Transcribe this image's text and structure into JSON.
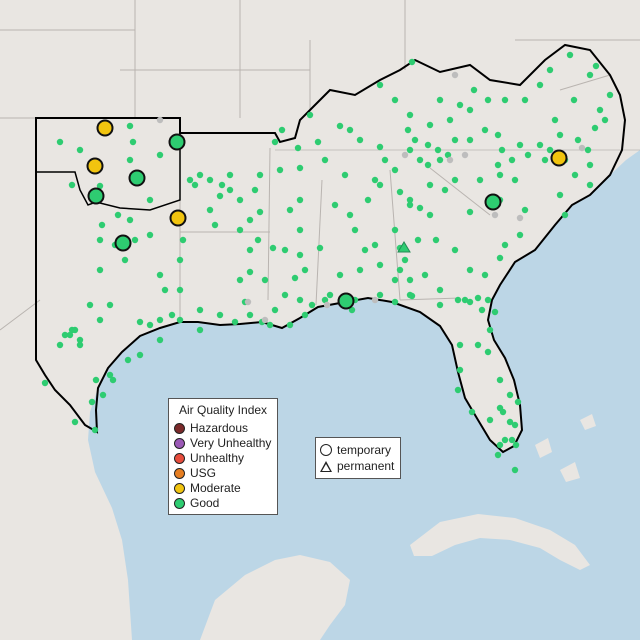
{
  "colors": {
    "water": "#bcd6e6",
    "land": "#e9e6e2",
    "border": "#b9b4b0",
    "region": "#000000",
    "good": "#2ecc71",
    "moderate": "#f1c40f",
    "usg": "#e67e22",
    "unhealthy": "#e74c3c",
    "very_unhealthy": "#9b59b6",
    "hazardous": "#7b2a2a",
    "nodata": "#bdbdbd"
  },
  "legend": {
    "title": "Air Quality Index",
    "items": [
      {
        "label": "Hazardous",
        "color": "#7b2a2a",
        "name": "legend-hazardous"
      },
      {
        "label": "Very Unhealthy",
        "color": "#9b59b6",
        "name": "legend-very-unhealthy"
      },
      {
        "label": "Unhealthy",
        "color": "#e74c3c",
        "name": "legend-unhealthy"
      },
      {
        "label": "USG",
        "color": "#e67e22",
        "name": "legend-usg"
      },
      {
        "label": "Moderate",
        "color": "#f1c40f",
        "name": "legend-moderate"
      },
      {
        "label": "Good",
        "color": "#2ecc71",
        "name": "legend-good"
      }
    ]
  },
  "type_legend": {
    "temporary": "temporary",
    "permanent": "permanent"
  },
  "monitors": {
    "temporary_large": [
      {
        "category": "moderate"
      },
      {
        "category": "good"
      },
      {
        "category": "moderate"
      },
      {
        "category": "good"
      },
      {
        "category": "good"
      },
      {
        "category": "moderate"
      },
      {
        "category": "good"
      },
      {
        "category": "moderate"
      },
      {
        "category": "good"
      },
      {
        "category": "good"
      }
    ]
  }
}
